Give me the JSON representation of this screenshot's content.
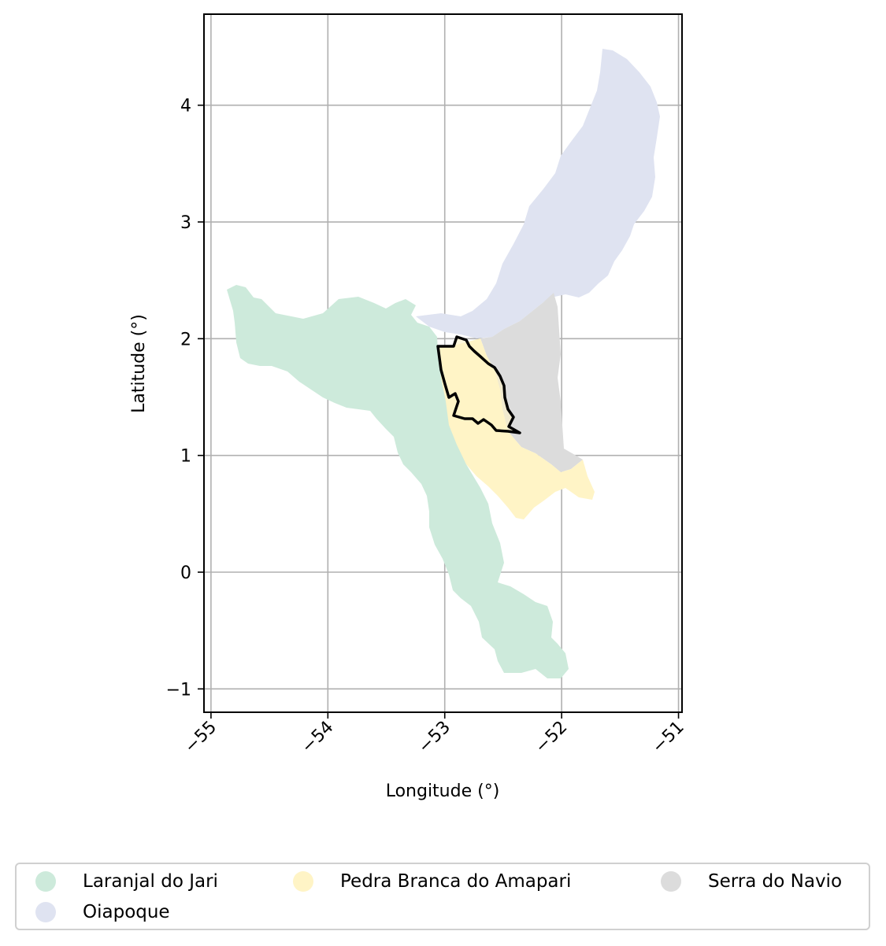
{
  "map": {
    "x_label": "Longitude (°)",
    "y_label": "Latitude (°)",
    "x_ticks": [
      -55,
      -54,
      -53,
      -52,
      -51
    ],
    "y_ticks": [
      -1,
      0,
      1,
      2,
      3,
      4
    ],
    "x_tick_labels": [
      "−55",
      "−54",
      "−53",
      "−52",
      "−51"
    ],
    "y_tick_labels": [
      "−1",
      "0",
      "1",
      "2",
      "3",
      "4"
    ],
    "x_range": [
      -55.06,
      -50.97
    ],
    "y_range": [
      -1.2,
      4.78
    ],
    "grid": true,
    "highlight_outline_color": "#000000"
  },
  "legend": {
    "items": [
      {
        "label": "Laranjal do Jari",
        "color": "#cdeadb"
      },
      {
        "label": "Pedra Branca do Amapari",
        "color": "#fff4c6"
      },
      {
        "label": "Serra do Navio",
        "color": "#dcdcdc"
      },
      {
        "label": "Oiapoque",
        "color": "#dfe3f1"
      }
    ]
  },
  "regions": [
    {
      "name": "Laranjal do Jari",
      "color": "#cdeadb"
    },
    {
      "name": "Oiapoque",
      "color": "#dfe3f1"
    },
    {
      "name": "Serra do Navio",
      "color": "#dcdcdc"
    },
    {
      "name": "Pedra Branca do Amapari",
      "color": "#fff4c6"
    }
  ]
}
